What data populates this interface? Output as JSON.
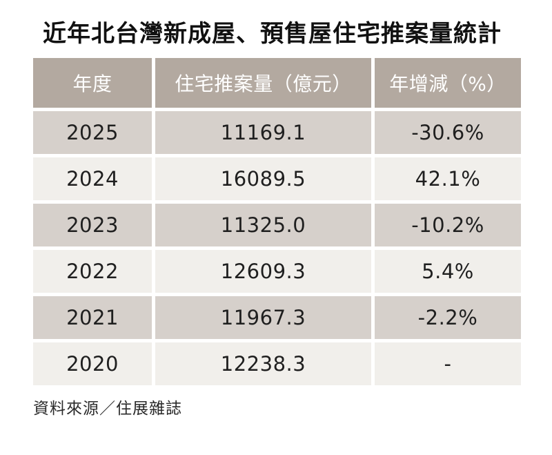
{
  "title": "近年北台灣新成屋、預售屋住宅推案量統計",
  "source": "資料來源／住展雜誌",
  "table": {
    "headers": [
      "年度",
      "住宅推案量（億元）",
      "年增減（%）"
    ],
    "rows": [
      [
        "2025",
        "11169.1",
        "-30.6%"
      ],
      [
        "2024",
        "16089.5",
        "42.1%"
      ],
      [
        "2023",
        "11325.0",
        "-10.2%"
      ],
      [
        "2022",
        "12609.3",
        "5.4%"
      ],
      [
        "2021",
        "11967.3",
        "-2.2%"
      ],
      [
        "2020",
        "12238.3",
        "-"
      ]
    ]
  },
  "chart_data": {
    "type": "table",
    "title": "近年北台灣新成屋、預售屋住宅推案量統計",
    "columns": [
      "年度",
      "住宅推案量（億元）",
      "年增減（%）"
    ],
    "years": [
      2025,
      2024,
      2023,
      2022,
      2021,
      2020
    ],
    "volume_yi_yuan": [
      11169.1,
      16089.5,
      11325.0,
      12609.3,
      11967.3,
      12238.3
    ],
    "yoy_change_pct": [
      -30.6,
      42.1,
      -10.2,
      5.4,
      -2.2,
      null
    ],
    "source": "資料來源／住展雜誌"
  },
  "colors": {
    "header_bg": "#b3a9a0",
    "row_odd_bg": "#d6d0cb",
    "row_even_bg": "#f1efeb",
    "header_text": "#ffffff",
    "body_text": "#1f1f1f"
  }
}
